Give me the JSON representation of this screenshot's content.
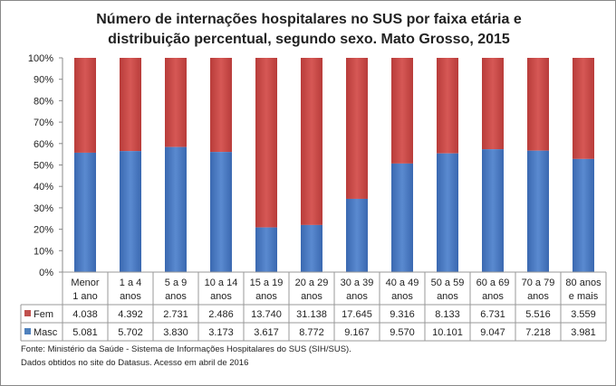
{
  "chart_data": {
    "type": "bar",
    "stacked": "percent",
    "title_lines": [
      "Número de internações hospitalares no SUS por faixa etária e",
      "distribuição percentual, segundo sexo. Mato Grosso, 2015"
    ],
    "categories": [
      [
        "Menor",
        "1 ano"
      ],
      [
        "1 a 4",
        "anos"
      ],
      [
        "5 a 9",
        "anos"
      ],
      [
        "10 a 14",
        "anos"
      ],
      [
        "15 a 19",
        "anos"
      ],
      [
        "20 a 29",
        "anos"
      ],
      [
        "30 a 39",
        "anos"
      ],
      [
        "40 a 49",
        "anos"
      ],
      [
        "50 a 59",
        "anos"
      ],
      [
        "60 a 69",
        "anos"
      ],
      [
        "70 a 79",
        "anos"
      ],
      [
        "80 anos",
        "e mais"
      ]
    ],
    "series": [
      {
        "name": "Fem",
        "color": "#C0504D",
        "values": [
          4038,
          4392,
          2731,
          2486,
          13740,
          31138,
          17645,
          9316,
          8133,
          6731,
          5516,
          3559
        ],
        "labels": [
          "4.038",
          "4.392",
          "2.731",
          "2.486",
          "13.740",
          "31.138",
          "17.645",
          "9.316",
          "8.133",
          "6.731",
          "5.516",
          "3.559"
        ]
      },
      {
        "name": "Masc",
        "color": "#4F81BD",
        "values": [
          5081,
          5702,
          3830,
          3173,
          3617,
          8772,
          9167,
          9570,
          10101,
          9047,
          7218,
          3981
        ],
        "labels": [
          "5.081",
          "5.702",
          "3.830",
          "3.173",
          "3.617",
          "8.772",
          "9.167",
          "9.570",
          "10.101",
          "9.047",
          "7.218",
          "3.981"
        ]
      }
    ],
    "yticks": [
      "0%",
      "10%",
      "20%",
      "30%",
      "40%",
      "50%",
      "60%",
      "70%",
      "80%",
      "90%",
      "100%"
    ],
    "ylim": [
      0,
      100
    ],
    "legend": "data-table"
  },
  "footer": {
    "source": "Fonte: Ministério da Saúde - Sistema de Informações Hospitalares do SUS (SIH/SUS).",
    "note": "Dados obtidos no site do Datasus. Acesso em abril de 2016"
  }
}
